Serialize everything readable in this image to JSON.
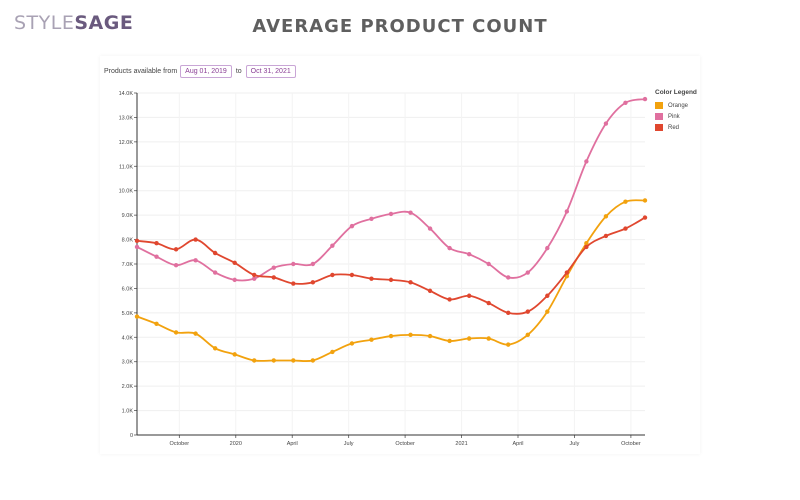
{
  "brand": {
    "style": "STYLE",
    "sage": "SAGE"
  },
  "title": "AVERAGE PRODUCT COUNT",
  "filter": {
    "prefix": "Products available from",
    "start": "Aug 01, 2019",
    "to": "to",
    "end": "Oct 31, 2021"
  },
  "legend": {
    "title": "Color Legend",
    "items": [
      {
        "label": "Orange",
        "color": "#f2a20e"
      },
      {
        "label": "Pink",
        "color": "#e0709f"
      },
      {
        "label": "Red",
        "color": "#e0472f"
      }
    ]
  },
  "chart_data": {
    "type": "line",
    "x_tick_labels": [
      "October",
      "2020",
      "April",
      "July",
      "October",
      "2021",
      "April",
      "July",
      "October"
    ],
    "x_tick_index": [
      3,
      7,
      11,
      15,
      19,
      23,
      27,
      31,
      35
    ],
    "y_tick_labels": [
      "0",
      "1.0K",
      "2.0K",
      "3.0K",
      "4.0K",
      "5.0K",
      "6.0K",
      "7.0K",
      "8.0K",
      "9.0K",
      "10.0K",
      "11.0K",
      "12.0K",
      "13.0K",
      "14.0K"
    ],
    "ylim": [
      0,
      14000
    ],
    "x_count": 36,
    "series": [
      {
        "name": "Orange",
        "color": "#f2a20e",
        "x": [
          0,
          2,
          4,
          6,
          8,
          10,
          12,
          14,
          16,
          18,
          20,
          22,
          24,
          26,
          28,
          30,
          32,
          34,
          36,
          38,
          40,
          42,
          44,
          46,
          48,
          50,
          52
        ],
        "values": [
          4850,
          4550,
          4200,
          4150,
          3550,
          3300,
          3050,
          3050,
          3050,
          3050,
          3400,
          3750,
          3900,
          4050,
          4100,
          4050,
          3850,
          3950,
          3950,
          3700,
          4100,
          5050,
          6500,
          7850,
          8950,
          9550,
          9600
        ]
      },
      {
        "name": "Pink",
        "color": "#e0709f",
        "x": [
          0,
          2,
          4,
          6,
          8,
          10,
          12,
          14,
          16,
          18,
          20,
          22,
          24,
          26,
          28,
          30,
          32,
          34,
          36,
          38,
          40,
          42,
          44,
          46,
          48,
          50,
          52
        ],
        "values": [
          7700,
          7300,
          6950,
          7150,
          6650,
          6350,
          6400,
          6850,
          7000,
          7000,
          7750,
          8550,
          8850,
          9050,
          9100,
          8450,
          7650,
          7400,
          7000,
          6450,
          6650,
          7650,
          9150,
          11200,
          12750,
          13600,
          13750
        ]
      },
      {
        "name": "Red",
        "color": "#e0472f",
        "x": [
          0,
          2,
          4,
          6,
          8,
          10,
          12,
          14,
          16,
          18,
          20,
          22,
          24,
          26,
          28,
          30,
          32,
          34,
          36,
          38,
          40,
          42,
          44,
          46,
          48,
          50,
          52
        ],
        "values": [
          7950,
          7850,
          7600,
          8000,
          7450,
          7050,
          6550,
          6450,
          6200,
          6250,
          6550,
          6550,
          6400,
          6350,
          6250,
          5900,
          5550,
          5700,
          5400,
          5000,
          5050,
          5700,
          6650,
          7700,
          8150,
          8450,
          8900
        ]
      }
    ]
  }
}
